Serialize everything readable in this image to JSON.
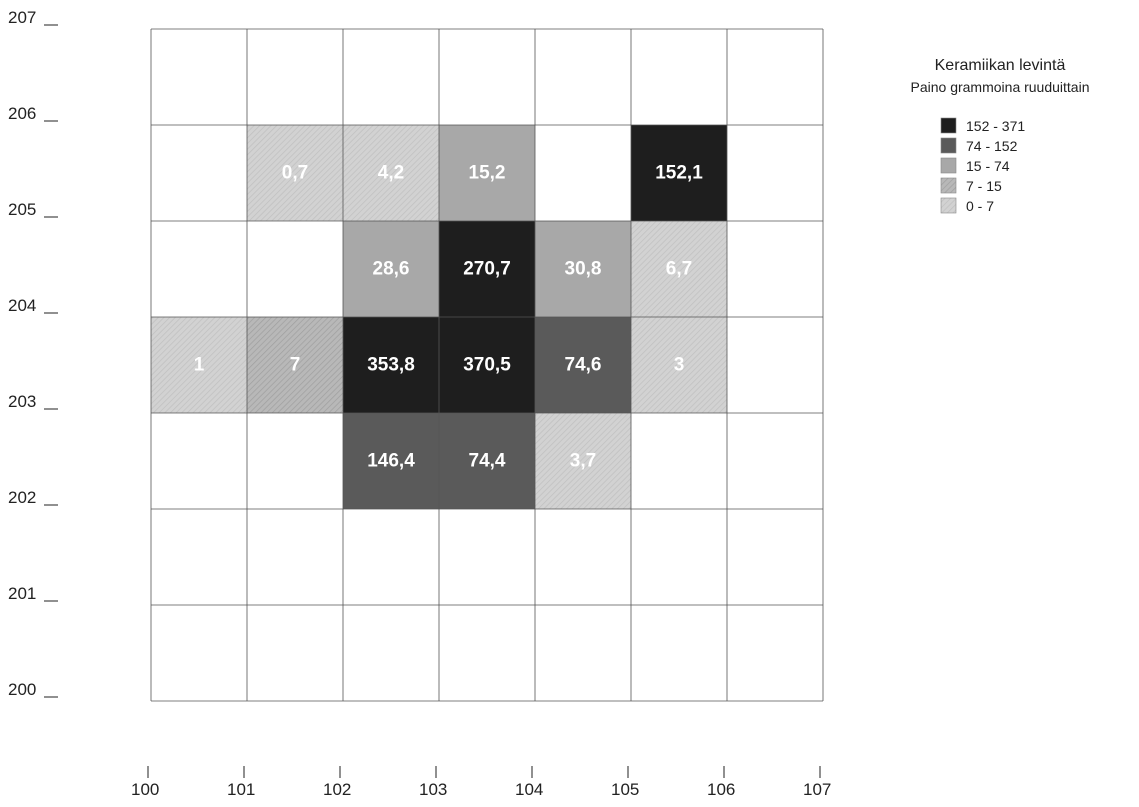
{
  "chart_data": {
    "type": "heatmap",
    "x_ticks": [
      "100",
      "101",
      "102",
      "103",
      "104",
      "105",
      "106",
      "107"
    ],
    "y_ticks": [
      "200",
      "201",
      "202",
      "203",
      "204",
      "205",
      "206",
      "207"
    ],
    "xlim": [
      100,
      107
    ],
    "ylim": [
      200,
      207
    ],
    "grid": true,
    "legend": {
      "title": "Keramiikan levintä",
      "subtitle": "Paino grammoina ruuduittain",
      "placement": "top-right",
      "classes": [
        {
          "label": "152 - 371",
          "min": 152,
          "max": 371,
          "color": "#1e1e1e"
        },
        {
          "label": "74 - 152",
          "min": 74,
          "max": 152,
          "color": "#5a5a5a"
        },
        {
          "label": "15 - 74",
          "min": 15,
          "max": 74,
          "color": "#a8a8a8"
        },
        {
          "label": "7 - 15",
          "min": 7,
          "max": 15,
          "color": "#b4b4b4"
        },
        {
          "label": "0 - 7",
          "min": 0,
          "max": 7,
          "color": "#cfcfcf"
        }
      ]
    },
    "cells": [
      {
        "x": 101,
        "y": 205,
        "label": "0,7",
        "value": 0.7
      },
      {
        "x": 102,
        "y": 205,
        "label": "4,2",
        "value": 4.2
      },
      {
        "x": 103,
        "y": 205,
        "label": "15,2",
        "value": 15.2
      },
      {
        "x": 105,
        "y": 205,
        "label": "152,1",
        "value": 152.1
      },
      {
        "x": 102,
        "y": 204,
        "label": "28,6",
        "value": 28.6
      },
      {
        "x": 103,
        "y": 204,
        "label": "270,7",
        "value": 270.7
      },
      {
        "x": 104,
        "y": 204,
        "label": "30,8",
        "value": 30.8
      },
      {
        "x": 105,
        "y": 204,
        "label": "6,7",
        "value": 6.7
      },
      {
        "x": 100,
        "y": 203,
        "label": "1",
        "value": 1
      },
      {
        "x": 101,
        "y": 203,
        "label": "7",
        "value": 7
      },
      {
        "x": 102,
        "y": 203,
        "label": "353,8",
        "value": 353.8
      },
      {
        "x": 103,
        "y": 203,
        "label": "370,5",
        "value": 370.5
      },
      {
        "x": 104,
        "y": 203,
        "label": "74,6",
        "value": 74.6
      },
      {
        "x": 105,
        "y": 203,
        "label": "3",
        "value": 3
      },
      {
        "x": 102,
        "y": 202,
        "label": "146,4",
        "value": 146.4
      },
      {
        "x": 103,
        "y": 202,
        "label": "74,4",
        "value": 74.4
      },
      {
        "x": 104,
        "y": 202,
        "label": "3,7",
        "value": 3.7
      }
    ]
  }
}
